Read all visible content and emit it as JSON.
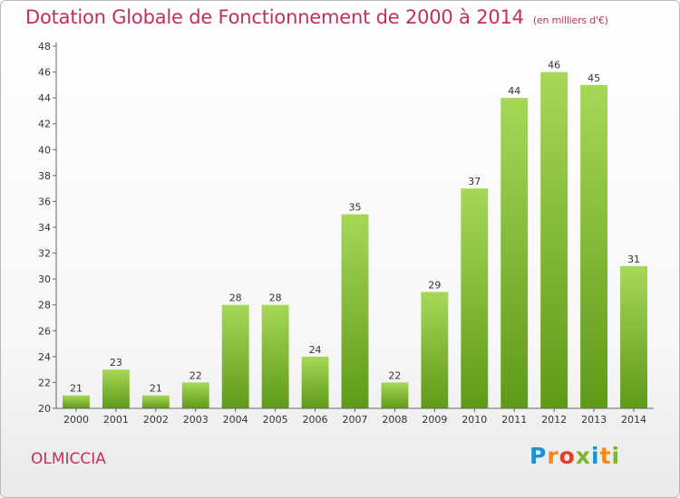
{
  "title": "Dotation Globale de Fonctionnement de 2000 à 2014",
  "subtitle": "(en milliers d'€)",
  "commune": "OLMICCIA",
  "logo": {
    "text": "Proxiti",
    "letters": [
      "P",
      "r",
      "o",
      "x",
      "i",
      "t",
      "i"
    ],
    "colors": [
      "#1d8fd6",
      "#f08a1c",
      "#e23b2e",
      "#7ab829",
      "#1d8fd6",
      "#f08a1c",
      "#7ab829"
    ]
  },
  "colors": {
    "title": "#c0305a",
    "bar_top": "#a6d856",
    "bar_bottom": "#5e9a18",
    "axis": "#666666"
  },
  "chart_data": {
    "type": "bar",
    "categories": [
      "2000",
      "2001",
      "2002",
      "2003",
      "2004",
      "2005",
      "2006",
      "2007",
      "2008",
      "2009",
      "2010",
      "2011",
      "2012",
      "2013",
      "2014"
    ],
    "values": [
      21,
      23,
      21,
      22,
      28,
      28,
      24,
      35,
      22,
      29,
      37,
      44,
      46,
      45,
      31
    ],
    "ylim": [
      20,
      48
    ],
    "yticks": [
      20,
      22,
      24,
      26,
      28,
      30,
      32,
      34,
      36,
      38,
      40,
      42,
      44,
      46,
      48
    ],
    "grid": false,
    "data_labels": true
  }
}
